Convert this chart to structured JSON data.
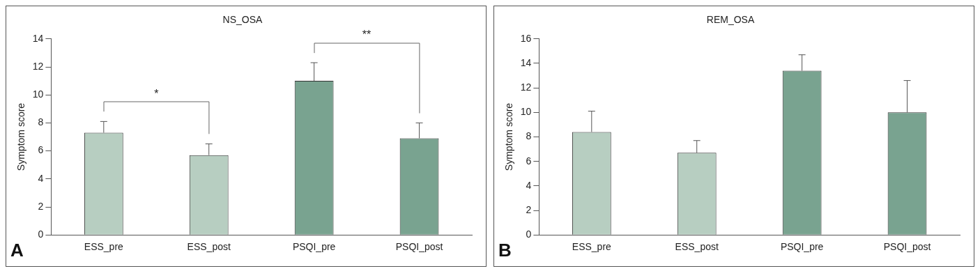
{
  "chart_data": [
    {
      "type": "bar",
      "title": "NS_OSA",
      "ylabel": "Symptom score",
      "categories": [
        "ESS_pre",
        "ESS_post",
        "PSQI_pre",
        "PSQI_post"
      ],
      "values": [
        7.3,
        5.7,
        11.0,
        6.9
      ],
      "colors": [
        "#b7cec1",
        "#b7cec1",
        "#79a390",
        "#79a390"
      ],
      "errors": [
        [
          7.3,
          8.1
        ],
        [
          5.7,
          6.5
        ],
        [
          11.0,
          12.3
        ],
        [
          6.9,
          8.0
        ]
      ],
      "ylim": [
        0,
        14
      ],
      "yticks": [
        0,
        2,
        4,
        6,
        8,
        10,
        12,
        14
      ],
      "grid": false,
      "legend": false,
      "annotations": [
        "A",
        "*",
        "**"
      ]
    },
    {
      "type": "bar",
      "title": "REM_OSA",
      "ylabel": "Symptom score",
      "categories": [
        "ESS_pre",
        "ESS_post",
        "PSQI_pre",
        "PSQI_post"
      ],
      "values": [
        8.4,
        6.7,
        13.4,
        10.0
      ],
      "colors": [
        "#b7cec1",
        "#b7cec1",
        "#79a390",
        "#79a390"
      ],
      "errors": [
        [
          8.4,
          10.1
        ],
        [
          6.7,
          7.7
        ],
        [
          13.4,
          14.7
        ],
        [
          10.0,
          12.6
        ]
      ],
      "ylim": [
        0,
        16
      ],
      "yticks": [
        0,
        2,
        4,
        6,
        8,
        10,
        12,
        14,
        16
      ],
      "grid": false,
      "legend": false,
      "annotations": [
        "B"
      ]
    }
  ]
}
